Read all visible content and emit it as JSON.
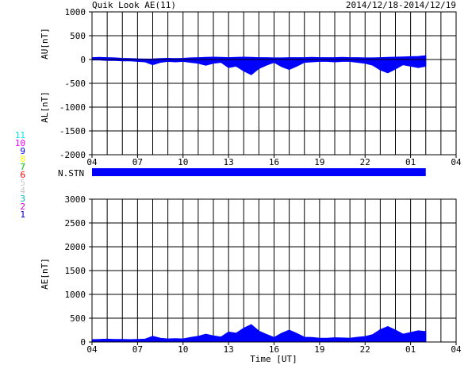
{
  "chart_data": [
    {
      "type": "area",
      "title": "Quik Look AE(11)",
      "date_range": "2014/12/18-2014/12/19",
      "ylabel_upper": "AU[nT]",
      "ylabel_lower": "AL[nT]",
      "ylim": [
        -2000,
        1000
      ],
      "yticks": [
        "1000",
        "500",
        "0",
        "-500",
        "-1000",
        "-1500",
        "-2000"
      ],
      "xticks": [
        "04",
        "07",
        "10",
        "13",
        "16",
        "19",
        "22",
        "01",
        "04"
      ],
      "xlim_hours": [
        0,
        24
      ],
      "grid": true,
      "series": [
        {
          "color": "#0000ff",
          "x": [
            0,
            0.5,
            1,
            1.5,
            2,
            2.5,
            3,
            3.5,
            4,
            4.5,
            5,
            5.5,
            6,
            6.5,
            7,
            7.5,
            8,
            8.5,
            9,
            9.5,
            10,
            10.5,
            11,
            11.5,
            12,
            12.5,
            13,
            13.5,
            14,
            14.5,
            15,
            15.5,
            16,
            16.5,
            17,
            17.5,
            18,
            18.5,
            19,
            19.5,
            20,
            20.5,
            21,
            21.5,
            22
          ],
          "au": [
            40,
            45,
            40,
            35,
            25,
            20,
            15,
            10,
            12,
            20,
            25,
            20,
            25,
            35,
            40,
            45,
            50,
            45,
            40,
            45,
            50,
            45,
            40,
            40,
            35,
            35,
            40,
            40,
            40,
            45,
            40,
            40,
            40,
            45,
            40,
            40,
            35,
            35,
            40,
            45,
            50,
            55,
            60,
            65,
            80
          ],
          "al": [
            -10,
            -10,
            -20,
            -20,
            -30,
            -30,
            -40,
            -50,
            -110,
            -60,
            -40,
            -50,
            -40,
            -60,
            -80,
            -120,
            -80,
            -60,
            -170,
            -140,
            -240,
            -320,
            -190,
            -120,
            -60,
            -150,
            -210,
            -140,
            -60,
            -50,
            -40,
            -40,
            -50,
            -40,
            -40,
            -60,
            -80,
            -120,
            -220,
            -280,
            -200,
            -110,
            -140,
            -170,
            -140
          ]
        }
      ]
    },
    {
      "type": "area",
      "ylabel": "AE[nT]",
      "xlabel": "Time [UT]",
      "ylim": [
        0,
        3000
      ],
      "yticks": [
        "3000",
        "2500",
        "2000",
        "1500",
        "1000",
        "500",
        "0"
      ],
      "xticks": [
        "04",
        "07",
        "10",
        "13",
        "16",
        "19",
        "22",
        "01",
        "04"
      ],
      "xlim_hours": [
        0,
        24
      ],
      "grid": true,
      "series": [
        {
          "color": "#0000ff",
          "x": [
            0,
            0.5,
            1,
            1.5,
            2,
            2.5,
            3,
            3.5,
            4,
            4.5,
            5,
            5.5,
            6,
            6.5,
            7,
            7.5,
            8,
            8.5,
            9,
            9.5,
            10,
            10.5,
            11,
            11.5,
            12,
            12.5,
            13,
            13.5,
            14,
            14.5,
            15,
            15.5,
            16,
            16.5,
            17,
            17.5,
            18,
            18.5,
            19,
            19.5,
            20,
            20.5,
            21,
            21.5,
            22
          ],
          "values": [
            50,
            55,
            60,
            55,
            55,
            50,
            55,
            60,
            120,
            80,
            65,
            70,
            65,
            95,
            120,
            165,
            130,
            105,
            210,
            185,
            290,
            365,
            230,
            160,
            95,
            185,
            250,
            180,
            100,
            95,
            80,
            80,
            90,
            85,
            80,
            100,
            115,
            155,
            260,
            325,
            250,
            165,
            200,
            235,
            220
          ]
        }
      ]
    }
  ],
  "station_label": "N.STN",
  "station_coverage_hours": [
    0,
    22
  ],
  "station_legend": [
    {
      "label": "11",
      "color": "#00e5e5"
    },
    {
      "label": "10",
      "color": "#ff00ff"
    },
    {
      "label": "9",
      "color": "#0000ff"
    },
    {
      "label": "8",
      "color": "#ffff00"
    },
    {
      "label": "7",
      "color": "#00c000"
    },
    {
      "label": "6",
      "color": "#ff0000"
    },
    {
      "label": "5",
      "color": "#c8c8c8"
    },
    {
      "label": "4",
      "color": "#c8c8c8"
    },
    {
      "label": "3",
      "color": "#00bcbc"
    },
    {
      "label": "2",
      "color": "#d000d0"
    },
    {
      "label": "1",
      "color": "#0000cc"
    }
  ]
}
